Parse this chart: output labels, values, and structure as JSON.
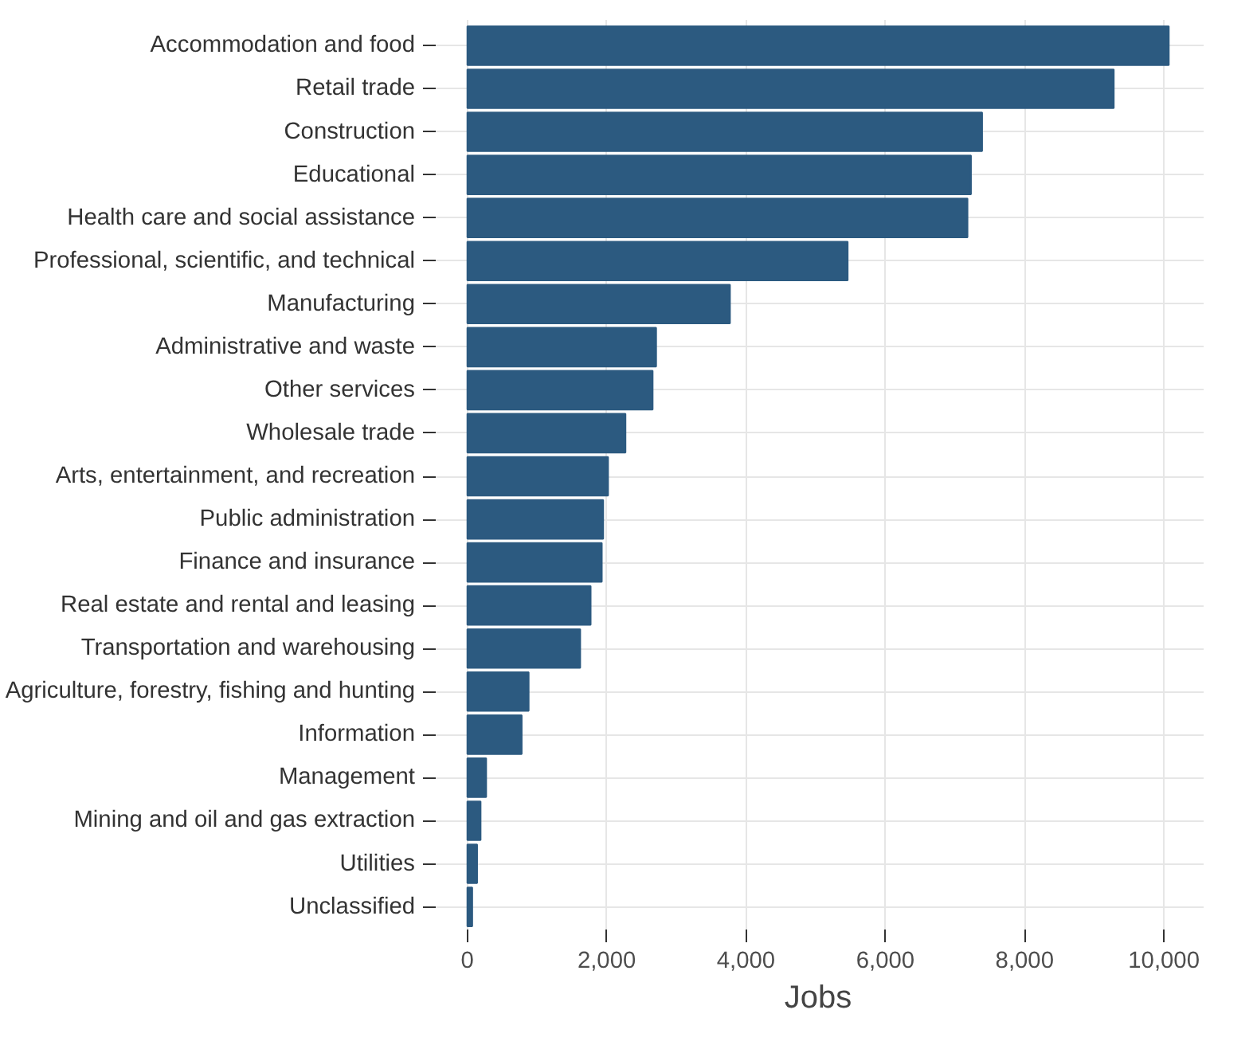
{
  "chart_data": {
    "type": "bar",
    "orientation": "horizontal",
    "xlabel": "Jobs",
    "categories": [
      "Accommodation and food",
      "Retail trade",
      "Construction",
      "Educational",
      "Health care and social assistance",
      "Professional, scientific, and technical",
      "Manufacturing",
      "Administrative and waste",
      "Other services",
      "Wholesale trade",
      "Arts, entertainment, and recreation",
      "Public administration",
      "Finance and insurance",
      "Real estate and rental and leasing",
      "Transportation and warehousing",
      "Agriculture, forestry, fishing and hunting",
      "Information",
      "Management",
      "Mining and oil and gas extraction",
      "Utilities",
      "Unclassified"
    ],
    "values": [
      10070,
      9280,
      7390,
      7230,
      7180,
      5460,
      3770,
      2710,
      2660,
      2270,
      2020,
      1950,
      1930,
      1770,
      1620,
      880,
      780,
      270,
      190,
      140,
      70
    ],
    "color": "#2c5a80",
    "xlim": [
      -500,
      10570
    ],
    "xticks": [
      {
        "value": 0,
        "label": "0"
      },
      {
        "value": 2000,
        "label": "2,000"
      },
      {
        "value": 4000,
        "label": "4,000"
      },
      {
        "value": 6000,
        "label": "6,000"
      },
      {
        "value": 8000,
        "label": "8,000"
      },
      {
        "value": 10000,
        "label": "10,000"
      }
    ],
    "grid": true
  }
}
